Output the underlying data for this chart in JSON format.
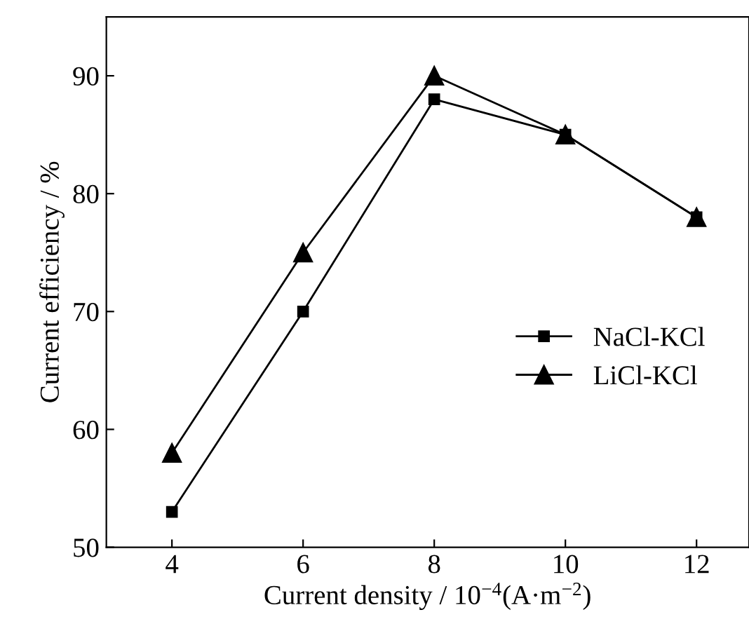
{
  "chart_data": {
    "type": "line",
    "xlabel": "Current density / 10$^{−4}$(A·m$^{−2}$)",
    "ylabel": "Current efficiency / %",
    "x": [
      4,
      6,
      8,
      10,
      12
    ],
    "series": [
      {
        "name": "NaCl-KCl",
        "color": "#000000",
        "marker": "square",
        "values": [
          53,
          70,
          88,
          85,
          78
        ]
      },
      {
        "name": "LiCl-KCl",
        "color": "#000000",
        "marker": "triangle",
        "values": [
          58,
          75,
          90,
          85,
          78
        ]
      }
    ],
    "xlim": [
      3,
      12.8
    ],
    "xticks": [
      4,
      6,
      8,
      10,
      12
    ],
    "ylim": [
      50,
      95
    ],
    "yticks": [
      50,
      60,
      70,
      80,
      90
    ],
    "grid": false,
    "legend": "bottom right",
    "line_style": "solid"
  }
}
